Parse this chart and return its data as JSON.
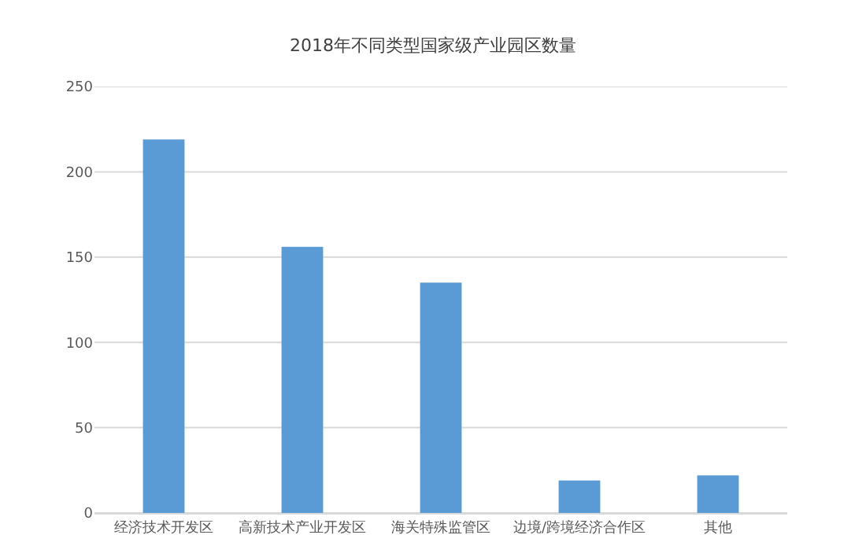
{
  "chart_data": {
    "type": "bar",
    "title": "2018年不同类型国家级产业园区数量",
    "categories": [
      "经济技术开发区",
      "高新技术产业开发区",
      "海关特殊监管区",
      "边境/跨境经济合作区",
      "其他"
    ],
    "values": [
      219,
      156,
      135,
      19,
      22
    ],
    "color": "#5b9bd5",
    "ylim": [
      0,
      250
    ],
    "yticks": [
      0,
      50,
      100,
      150,
      200,
      250
    ],
    "grid": "y"
  }
}
